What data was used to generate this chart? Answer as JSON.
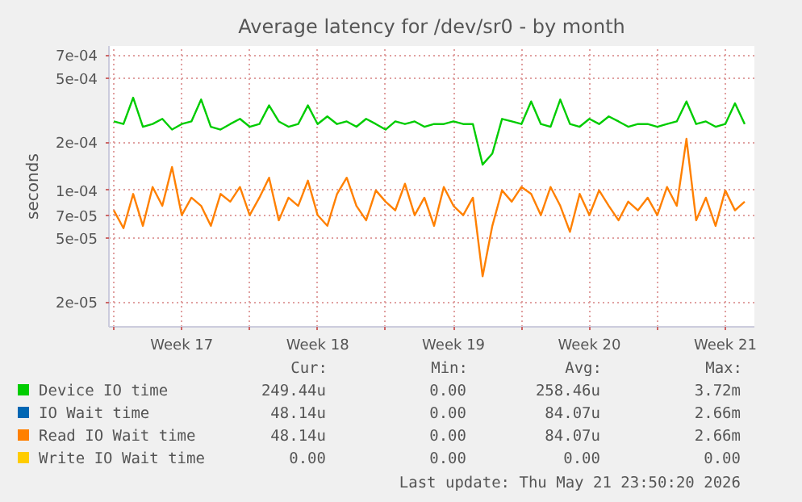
{
  "chart_data": {
    "type": "line",
    "title": "Average latency for /dev/sr0 - by month",
    "ylabel": "seconds",
    "log": "y",
    "grid": true,
    "legend": "bottom",
    "marker": "none",
    "line_style": "solid",
    "xlim": [
      "2026-04-19T18:00",
      "2026-05-23T00:00"
    ],
    "ylim": [
      1.4e-05,
      0.0008
    ],
    "xticks": [
      {
        "value": "2026-04-20",
        "label": null
      },
      {
        "value": "2026-04-23T12:00",
        "label": "Week 17"
      },
      {
        "value": "2026-04-27",
        "label": null
      },
      {
        "value": "2026-04-30T12:00",
        "label": "Week 18"
      },
      {
        "value": "2026-05-04",
        "label": null
      },
      {
        "value": "2026-05-07T12:00",
        "label": "Week 19"
      },
      {
        "value": "2026-05-11",
        "label": null
      },
      {
        "value": "2026-05-14T12:00",
        "label": "Week 20"
      },
      {
        "value": "2026-05-18",
        "label": null
      },
      {
        "value": "2026-05-21T12:00",
        "label": "Week 21"
      }
    ],
    "yticks": [
      {
        "value": 2e-05,
        "label": "2e-05"
      },
      {
        "value": 5e-05,
        "label": "5e-05"
      },
      {
        "value": 7e-05,
        "label": "7e-05"
      },
      {
        "value": 0.0001,
        "label": "1e-04"
      },
      {
        "value": 0.0002,
        "label": "2e-04"
      },
      {
        "value": 0.0005,
        "label": "5e-04"
      },
      {
        "value": 0.0007,
        "label": "7e-04"
      }
    ],
    "x": [
      "2026-04-20T00:00",
      "2026-04-20T12:00",
      "2026-04-21T00:00",
      "2026-04-21T12:00",
      "2026-04-22T00:00",
      "2026-04-22T12:00",
      "2026-04-23T00:00",
      "2026-04-23T12:00",
      "2026-04-24T00:00",
      "2026-04-24T12:00",
      "2026-04-25T00:00",
      "2026-04-25T12:00",
      "2026-04-26T00:00",
      "2026-04-26T12:00",
      "2026-04-27T00:00",
      "2026-04-27T12:00",
      "2026-04-28T00:00",
      "2026-04-28T12:00",
      "2026-04-29T00:00",
      "2026-04-29T12:00",
      "2026-04-30T00:00",
      "2026-04-30T12:00",
      "2026-05-01T00:00",
      "2026-05-01T12:00",
      "2026-05-02T00:00",
      "2026-05-02T12:00",
      "2026-05-03T00:00",
      "2026-05-03T12:00",
      "2026-05-04T00:00",
      "2026-05-04T12:00",
      "2026-05-05T00:00",
      "2026-05-05T12:00",
      "2026-05-06T00:00",
      "2026-05-06T12:00",
      "2026-05-07T00:00",
      "2026-05-07T12:00",
      "2026-05-08T00:00",
      "2026-05-08T12:00",
      "2026-05-09T00:00",
      "2026-05-09T12:00",
      "2026-05-10T00:00",
      "2026-05-10T12:00",
      "2026-05-11T00:00",
      "2026-05-11T12:00",
      "2026-05-12T00:00",
      "2026-05-12T12:00",
      "2026-05-13T00:00",
      "2026-05-13T12:00",
      "2026-05-14T00:00",
      "2026-05-14T12:00",
      "2026-05-15T00:00",
      "2026-05-15T12:00",
      "2026-05-16T00:00",
      "2026-05-16T12:00",
      "2026-05-17T00:00",
      "2026-05-17T12:00",
      "2026-05-18T00:00",
      "2026-05-18T12:00",
      "2026-05-19T00:00",
      "2026-05-19T12:00",
      "2026-05-20T00:00",
      "2026-05-20T12:00",
      "2026-05-21T00:00",
      "2026-05-21T12:00",
      "2026-05-22T00:00",
      "2026-05-22T12:00"
    ],
    "series": [
      {
        "name": "Device IO time",
        "color": "#00cc00",
        "values": [
          0.00027,
          0.00026,
          0.00038,
          0.00025,
          0.00026,
          0.00028,
          0.00024,
          0.00026,
          0.00027,
          0.00037,
          0.00025,
          0.00024,
          0.00026,
          0.00028,
          0.00025,
          0.00026,
          0.00034,
          0.00027,
          0.00025,
          0.00026,
          0.00034,
          0.00026,
          0.00029,
          0.00026,
          0.00027,
          0.00025,
          0.00028,
          0.00026,
          0.00024,
          0.00027,
          0.00026,
          0.00027,
          0.00025,
          0.00026,
          0.00026,
          0.00027,
          0.00026,
          0.00026,
          0.000145,
          0.00017,
          0.00028,
          0.00027,
          0.00026,
          0.00036,
          0.00026,
          0.00025,
          0.00037,
          0.00026,
          0.00025,
          0.00028,
          0.00026,
          0.00029,
          0.00027,
          0.00025,
          0.00026,
          0.00026,
          0.00025,
          0.00026,
          0.00027,
          0.00036,
          0.00026,
          0.00027,
          0.00025,
          0.00026,
          0.00035,
          0.00026
        ]
      },
      {
        "name": "IO Wait time",
        "color": "#0066b3",
        "values": [
          null,
          null,
          null,
          null,
          null,
          null,
          null,
          null,
          null,
          null,
          null,
          null,
          null,
          null,
          null,
          null,
          null,
          null,
          null,
          null,
          null,
          null,
          null,
          null,
          null,
          null,
          null,
          null,
          null,
          null,
          null,
          null,
          null,
          null,
          null,
          null,
          null,
          null,
          null,
          null,
          null,
          null,
          null,
          null,
          null,
          null,
          null,
          null,
          null,
          null,
          null,
          null,
          null,
          null,
          null,
          null,
          null,
          null,
          null,
          null,
          null,
          null,
          null,
          null,
          null,
          null
        ]
      },
      {
        "name": "Read IO Wait time",
        "color": "#ff8000",
        "values": [
          7.5e-05,
          5.8e-05,
          9.5e-05,
          6e-05,
          0.000105,
          8e-05,
          0.00014,
          7e-05,
          9e-05,
          8e-05,
          6e-05,
          9.5e-05,
          8.5e-05,
          0.000105,
          7e-05,
          9e-05,
          0.00012,
          6.5e-05,
          9e-05,
          8e-05,
          0.000115,
          7e-05,
          6e-05,
          9.5e-05,
          0.00012,
          8e-05,
          6.5e-05,
          0.0001,
          8.5e-05,
          7.5e-05,
          0.00011,
          7e-05,
          9e-05,
          6e-05,
          0.000105,
          8e-05,
          7e-05,
          9e-05,
          2.9e-05,
          6e-05,
          0.0001,
          8.5e-05,
          0.000105,
          9.5e-05,
          7e-05,
          0.000105,
          8e-05,
          5.5e-05,
          9.5e-05,
          7e-05,
          0.0001,
          8e-05,
          6.5e-05,
          8.5e-05,
          7.5e-05,
          9e-05,
          7e-05,
          0.000105,
          8e-05,
          0.00021,
          6.5e-05,
          9e-05,
          6e-05,
          0.0001,
          7.5e-05,
          8.5e-05
        ]
      },
      {
        "name": "Write IO Wait time",
        "color": "#ffcc00",
        "values": [
          null,
          null,
          null,
          null,
          null,
          null,
          null,
          null,
          null,
          null,
          null,
          null,
          null,
          null,
          null,
          null,
          null,
          null,
          null,
          null,
          null,
          null,
          null,
          null,
          null,
          null,
          null,
          null,
          null,
          null,
          null,
          null,
          null,
          null,
          null,
          null,
          null,
          null,
          null,
          null,
          null,
          null,
          null,
          null,
          null,
          null,
          null,
          null,
          null,
          null,
          null,
          null,
          null,
          null,
          null,
          null,
          null,
          null,
          null,
          null,
          null,
          null,
          null,
          null,
          null,
          null
        ]
      }
    ],
    "annotations": [
      "Cur:",
      "Min:",
      "Avg:",
      "Max:",
      "249.44u",
      "0.00",
      "258.46u",
      "3.72m",
      "48.14u",
      "0.00",
      "84.07u",
      "2.66m",
      "48.14u",
      "0.00",
      "84.07u",
      "2.66m",
      "0.00",
      "0.00",
      "0.00",
      "0.00",
      "Last update: Thu May 21 23:50:20 2026"
    ]
  }
}
